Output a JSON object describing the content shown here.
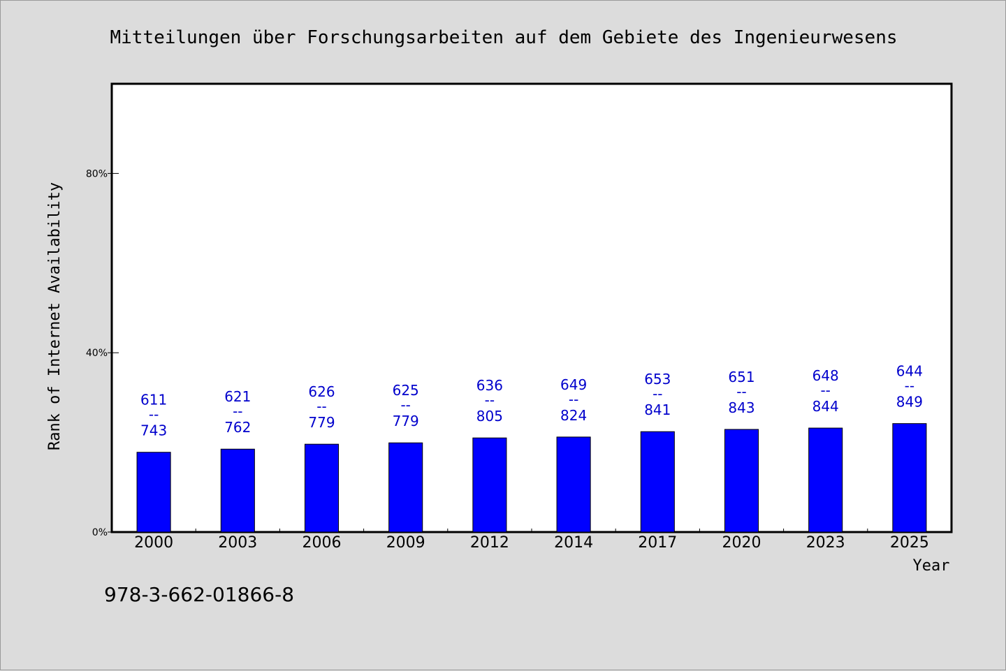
{
  "footer": {
    "isbn": "978-3-662-01866-8"
  },
  "colors": {
    "bar": "#0000ff",
    "label": "#0000cc",
    "background": "#dcdcdc",
    "plot": "#ffffff"
  },
  "chart_data": {
    "type": "bar",
    "title": "Mitteilungen über Forschungsarbeiten auf dem Gebiete des Ingenieurwesens",
    "xlabel": "Year",
    "ylabel": "Rank of Internet Availability",
    "y_tick_labels": [
      "0%",
      "40%",
      "80%"
    ],
    "ylim": [
      0,
      100
    ],
    "grid": false,
    "categories": [
      "2000",
      "2003",
      "2006",
      "2009",
      "2012",
      "2014",
      "2017",
      "2020",
      "2023",
      "2025"
    ],
    "series": [
      {
        "values": [
          17.8,
          18.5,
          19.6,
          19.9,
          21.0,
          21.2,
          22.4,
          22.9,
          23.2,
          24.2
        ],
        "labels_top": [
          "611",
          "621",
          "626",
          "625",
          "636",
          "649",
          "653",
          "651",
          "648",
          "644"
        ],
        "labels_bottom": [
          "743",
          "762",
          "779",
          "779",
          "805",
          "824",
          "841",
          "843",
          "844",
          "849"
        ],
        "label_separator": "--"
      }
    ]
  }
}
